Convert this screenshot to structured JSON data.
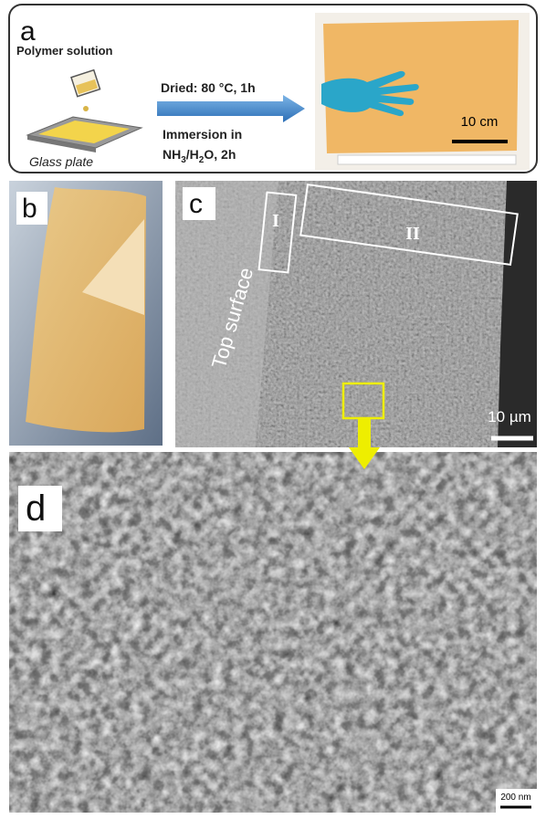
{
  "panel_a": {
    "label": "a",
    "polymer_solution": "Polymer solution",
    "glass_plate": "Glass plate",
    "step1": "Dried: 80 °C, 1h",
    "step2": "Immersion in",
    "step3": [
      "NH",
      "3",
      "/H",
      "2",
      "O, 2h"
    ],
    "scale_bar": "10 cm"
  },
  "panel_b": {
    "label": "b"
  },
  "panel_c": {
    "label": "c",
    "top_surface": "Top surface",
    "region_1": "I",
    "region_2": "II",
    "scale_bar": "10 µm"
  },
  "panel_d": {
    "label": "d",
    "scale_bar": "200 nm"
  }
}
